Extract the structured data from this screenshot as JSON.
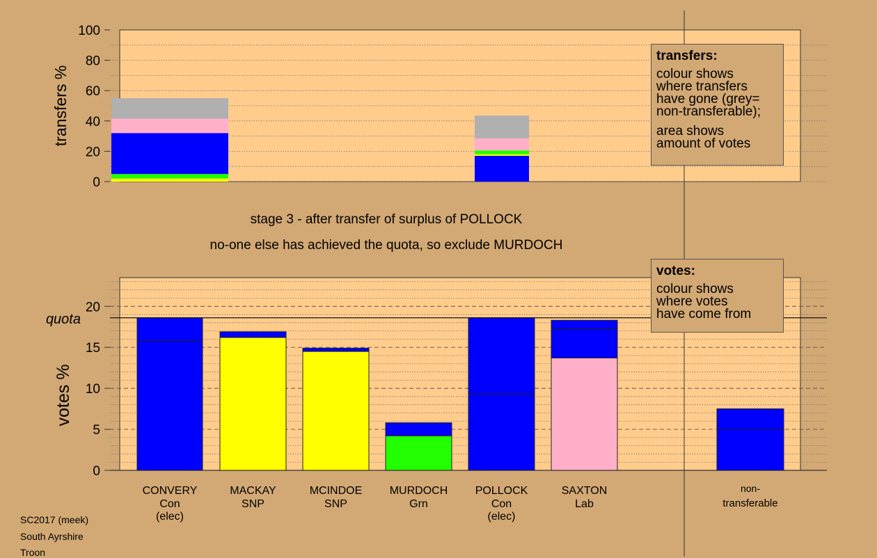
{
  "chart_data": [
    {
      "type": "bar",
      "subtype": "stacked",
      "ylabel": "transfers %",
      "ylim": [
        0,
        100
      ],
      "yticks": [
        0,
        20,
        40,
        60,
        80,
        100
      ],
      "bars": [
        {
          "candidate": "MURDOCH",
          "segments": [
            {
              "color": "#FFFF00",
              "value": 2
            },
            {
              "color": "#22FF00",
              "value": 3
            },
            {
              "color": "#0000FF",
              "value": 27
            },
            {
              "color": "#FFB0C8",
              "value": 9.5
            },
            {
              "color": "#B0B0B0",
              "value": 13.5
            }
          ]
        },
        {
          "candidate": "POLLOCK",
          "segments": [
            {
              "color": "#0000FF",
              "value": 17
            },
            {
              "color": "#FFFF00",
              "value": 1
            },
            {
              "color": "#22FF00",
              "value": 2.5
            },
            {
              "color": "#FFB0C8",
              "value": 8
            },
            {
              "color": "#B0B0B0",
              "value": 15
            }
          ]
        }
      ],
      "legend": {
        "title": "transfers:",
        "lines": [
          "colour shows",
          "where transfers",
          "have gone (grey=",
          "non-transferable);"
        ],
        "lines2": [
          "area shows",
          "amount of votes"
        ]
      }
    },
    {
      "type": "bar",
      "subtype": "stacked",
      "ylabel": "votes %",
      "ylim": [
        0,
        23.5
      ],
      "yticks": [
        0,
        5,
        10,
        15,
        20
      ],
      "quota": 18.6,
      "quota_label": "quota",
      "candidates": [
        {
          "name": "CONVERY",
          "party": "Con",
          "status": "(elec)",
          "segments": [
            {
              "color": "#0000FF",
              "value": 15.8
            },
            {
              "color": "#0000FF",
              "value": 2.8
            }
          ]
        },
        {
          "name": "MACKAY",
          "party": "SNP",
          "status": "",
          "segments": [
            {
              "color": "#FFFF00",
              "value": 16.2
            },
            {
              "color": "#0000FF",
              "value": 0.7
            }
          ]
        },
        {
          "name": "MCINDOE",
          "party": "SNP",
          "status": "",
          "segments": [
            {
              "color": "#FFFF00",
              "value": 14.5
            },
            {
              "color": "#0000FF",
              "value": 0.4
            }
          ]
        },
        {
          "name": "MURDOCH",
          "party": "Grn",
          "status": "",
          "segments": [
            {
              "color": "#22FF00",
              "value": 4.2
            },
            {
              "color": "#0000FF",
              "value": 1.6
            }
          ]
        },
        {
          "name": "POLLOCK",
          "party": "Con",
          "status": "(elec)",
          "segments": [
            {
              "color": "#0000FF",
              "value": 9.3
            },
            {
              "color": "#0000FF",
              "value": 9.3
            }
          ]
        },
        {
          "name": "SAXTON",
          "party": "Lab",
          "status": "",
          "segments": [
            {
              "color": "#FFB0C8",
              "value": 13.7
            },
            {
              "color": "#0000FF",
              "value": 3.5
            },
            {
              "color": "#0000FF",
              "value": 1.1
            }
          ]
        }
      ],
      "nontransferable": {
        "label1": "non-",
        "label2": "transferable",
        "segments": [
          {
            "color": "#0000FF",
            "value": 5.0
          },
          {
            "color": "#0000FF",
            "value": 2.5
          }
        ]
      },
      "legend": {
        "title": "votes:",
        "lines": [
          "colour shows",
          "where votes",
          "have come from"
        ]
      }
    }
  ],
  "stage_line1": "stage 3 - after transfer of surplus of POLLOCK",
  "stage_line2": "no-one else has achieved the quota, so exclude MURDOCH",
  "footer": {
    "line1": "SC2017 (meek)",
    "line2": "South Ayrshire",
    "line3": "Troon"
  },
  "colors": {
    "background": "#D2A874",
    "plot_bg": "#FFCC8C"
  }
}
